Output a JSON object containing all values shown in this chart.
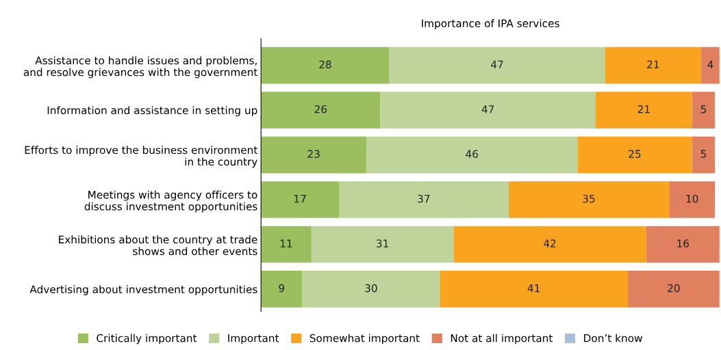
{
  "chart_data": {
    "type": "bar",
    "orientation": "horizontal",
    "stacked": true,
    "title": "Importance of IPA services",
    "categories": [
      "Assistance to handle issues and problems,\nand resolve grievances with the government",
      "Information and assistance in setting up",
      "Efforts to improve the business environment\nin the country",
      "Meetings with agency officers to\ndiscuss investment opportunities",
      "Exhibitions about the country at trade\nshows and other events",
      "Advertising about investment opportunities"
    ],
    "series": [
      {
        "name": "Critically important",
        "color": "#9bbf5f",
        "values": [
          28,
          26,
          23,
          17,
          11,
          9
        ]
      },
      {
        "name": "Important",
        "color": "#bfd49a",
        "values": [
          47,
          47,
          46,
          37,
          31,
          30
        ]
      },
      {
        "name": "Somewhat important",
        "color": "#f9a31e",
        "values": [
          21,
          21,
          25,
          35,
          42,
          41
        ]
      },
      {
        "name": "Not at all important",
        "color": "#e0805e",
        "values": [
          4,
          5,
          5,
          10,
          16,
          20
        ]
      },
      {
        "name": "Don’t know",
        "color": "#a9c0dc",
        "values": [
          null,
          null,
          null,
          null,
          null,
          null
        ]
      }
    ],
    "data_labels": true,
    "legend": "bottom",
    "grid": false
  }
}
